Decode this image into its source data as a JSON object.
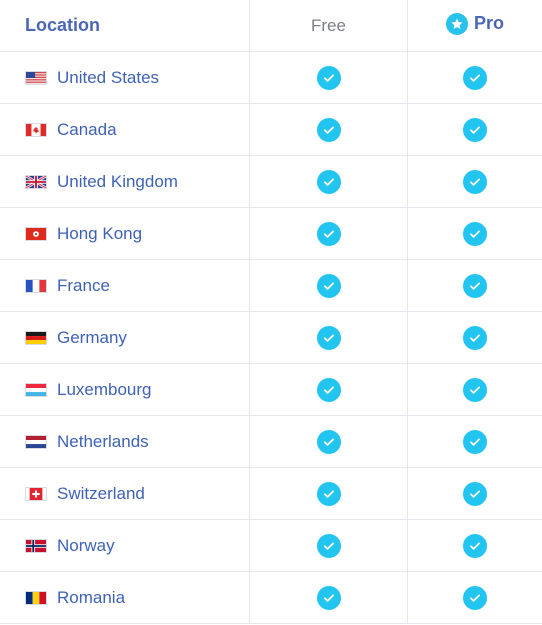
{
  "header": {
    "location_label": "Location",
    "free_label": "Free",
    "pro_label": "Pro"
  },
  "colors": {
    "accent": "#22c4f0",
    "link": "#3f62b5",
    "header_blue": "#4a67b7",
    "grid": "#e6e8ee"
  },
  "rows": [
    {
      "country": "United States",
      "flag_icon": "us-flag-icon",
      "free": true,
      "pro": true
    },
    {
      "country": "Canada",
      "flag_icon": "ca-flag-icon",
      "free": true,
      "pro": true
    },
    {
      "country": "United Kingdom",
      "flag_icon": "uk-flag-icon",
      "free": true,
      "pro": true
    },
    {
      "country": "Hong Kong",
      "flag_icon": "hk-flag-icon",
      "free": true,
      "pro": true
    },
    {
      "country": "France",
      "flag_icon": "fr-flag-icon",
      "free": true,
      "pro": true
    },
    {
      "country": "Germany",
      "flag_icon": "de-flag-icon",
      "free": true,
      "pro": true
    },
    {
      "country": "Luxembourg",
      "flag_icon": "lu-flag-icon",
      "free": true,
      "pro": true
    },
    {
      "country": "Netherlands",
      "flag_icon": "nl-flag-icon",
      "free": true,
      "pro": true
    },
    {
      "country": "Switzerland",
      "flag_icon": "ch-flag-icon",
      "free": true,
      "pro": true
    },
    {
      "country": "Norway",
      "flag_icon": "no-flag-icon",
      "free": true,
      "pro": true
    },
    {
      "country": "Romania",
      "flag_icon": "ro-flag-icon",
      "free": true,
      "pro": true
    }
  ]
}
